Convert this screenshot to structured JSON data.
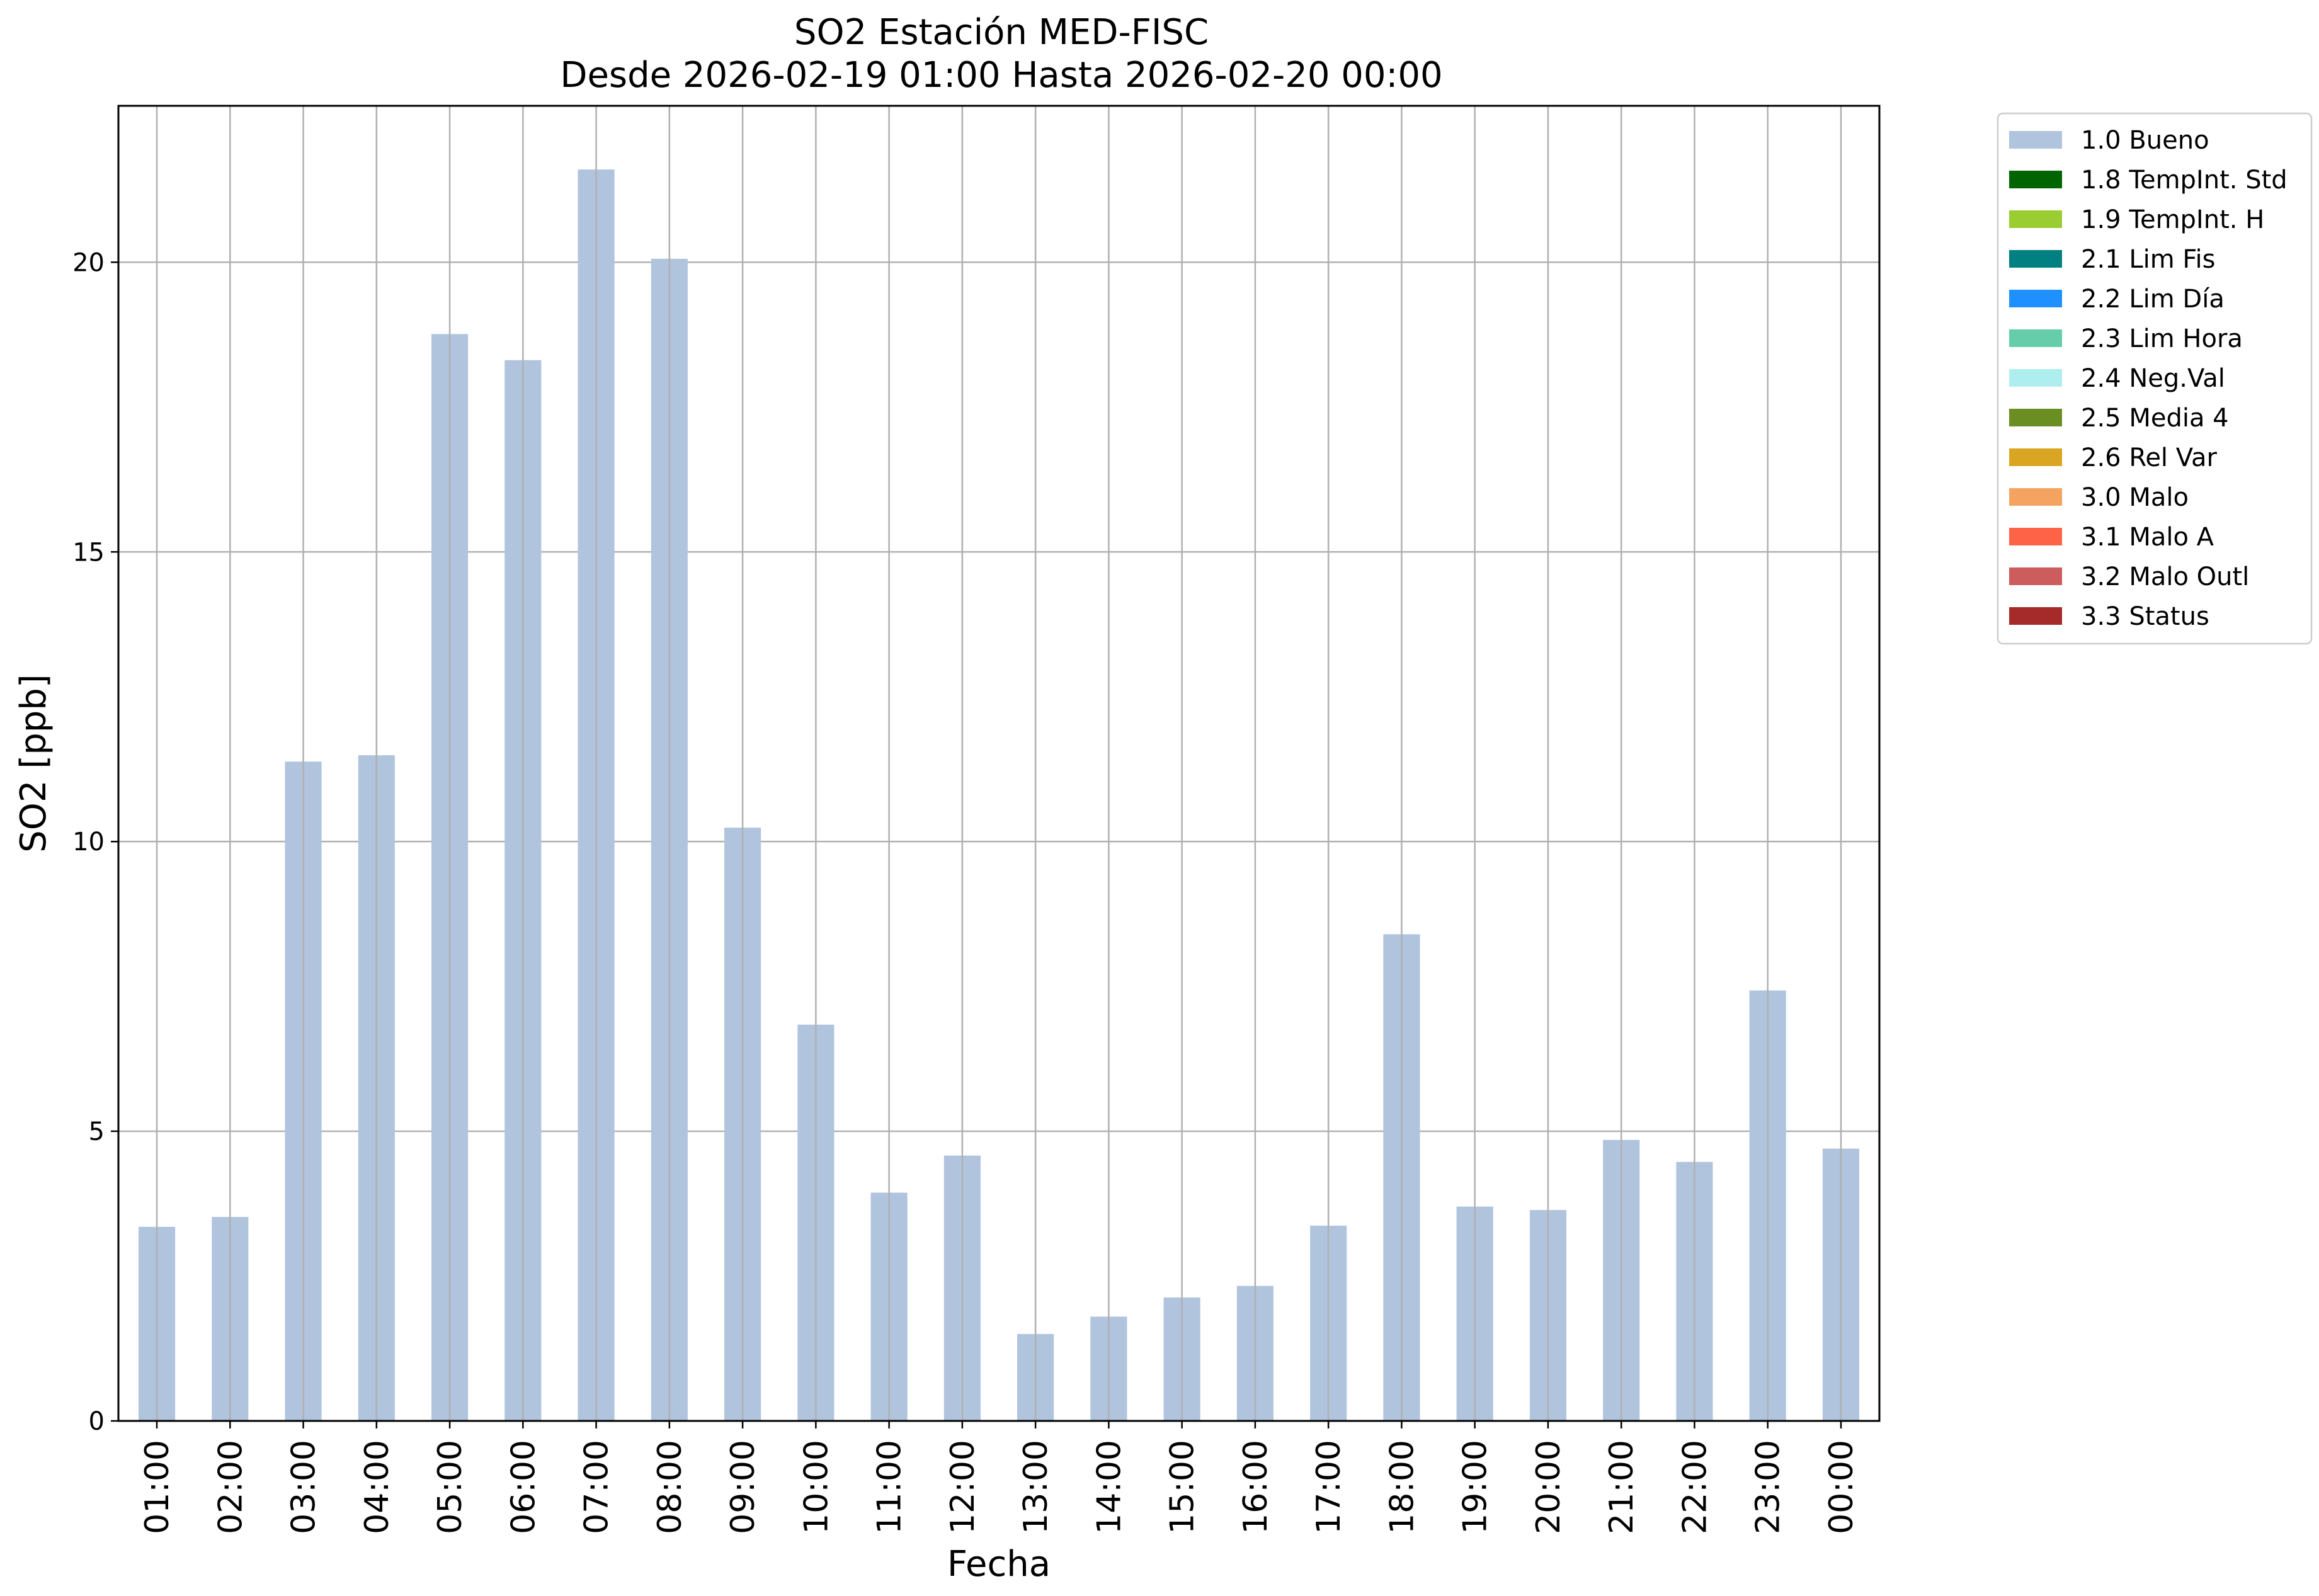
{
  "chart_data": {
    "type": "bar",
    "title": "SO2 Estación MED-FISC",
    "subtitle": "Desde 2026-02-19 01:00 Hasta 2026-02-20 00:00",
    "xlabel": "Fecha",
    "ylabel": "SO2 [ppb]",
    "ylim": [
      0,
      22.7
    ],
    "yticks": [
      "0",
      "5",
      "10",
      "15",
      "20"
    ],
    "grid": true,
    "legend_position": "outside-top-right",
    "categories": [
      "01:00",
      "02:00",
      "03:00",
      "04:00",
      "05:00",
      "06:00",
      "07:00",
      "08:00",
      "09:00",
      "10:00",
      "11:00",
      "12:00",
      "13:00",
      "14:00",
      "15:00",
      "16:00",
      "17:00",
      "18:00",
      "19:00",
      "20:00",
      "21:00",
      "22:00",
      "23:00",
      "00:00"
    ],
    "series": [
      {
        "name": "1.0 Bueno",
        "color": "#b0c4de",
        "values": [
          3.35,
          3.52,
          11.38,
          11.49,
          18.76,
          18.31,
          21.6,
          20.06,
          10.24,
          6.84,
          3.94,
          4.58,
          1.5,
          1.8,
          2.13,
          2.33,
          3.37,
          8.4,
          3.7,
          3.64,
          4.85,
          4.47,
          7.43,
          4.7
        ]
      }
    ],
    "legend": [
      {
        "label": "1.0 Bueno",
        "color": "#b0c4de"
      },
      {
        "label": "1.8 TempInt. Std",
        "color": "#006400"
      },
      {
        "label": "1.9 TempInt. H",
        "color": "#9acd32"
      },
      {
        "label": "2.1 Lim Fis",
        "color": "#008080"
      },
      {
        "label": "2.2 Lim Día",
        "color": "#1e90ff"
      },
      {
        "label": "2.3 Lim Hora",
        "color": "#66cdaa"
      },
      {
        "label": "2.4 Neg.Val",
        "color": "#afeeee"
      },
      {
        "label": "2.5 Media 4",
        "color": "#6b8e23"
      },
      {
        "label": "2.6 Rel Var",
        "color": "#daa520"
      },
      {
        "label": "3.0 Malo",
        "color": "#f4a460"
      },
      {
        "label": "3.1 Malo A",
        "color": "#ff6347"
      },
      {
        "label": "3.2 Malo Outl",
        "color": "#cd5c5c"
      },
      {
        "label": "3.3 Status",
        "color": "#a52a2a"
      }
    ]
  }
}
